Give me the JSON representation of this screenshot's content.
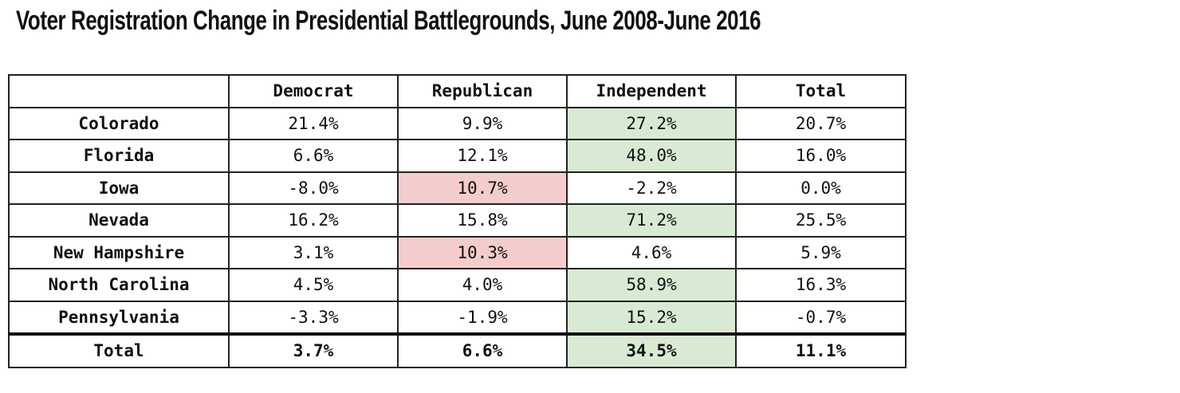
{
  "header": {
    "title": "Voter Registration Change in Presidential Battlegrounds, June 2008-June 2016"
  },
  "table": {
    "columns": [
      "Democrat",
      "Republican",
      "Independent",
      "Total"
    ],
    "rows": [
      [
        "Colorado",
        "21.4%",
        "9.9%",
        "27.2%",
        "20.7%"
      ],
      [
        "Florida",
        "6.6%",
        "12.1%",
        "48.0%",
        "16.0%"
      ],
      [
        "Iowa",
        "-8.0%",
        "10.7%",
        "-2.2%",
        "0.0%"
      ],
      [
        "Nevada",
        "16.2%",
        "15.8%",
        "71.2%",
        "25.5%"
      ],
      [
        "New Hampshire",
        "3.1%",
        "10.3%",
        "4.6%",
        "5.9%"
      ],
      [
        "North Carolina",
        "4.5%",
        "4.0%",
        "58.9%",
        "16.3%"
      ],
      [
        "Pennsylvania",
        "-3.3%",
        "-1.9%",
        "15.2%",
        "-0.7%"
      ],
      [
        "Total",
        "3.7%",
        "6.6%",
        "34.5%",
        "11.1%"
      ]
    ],
    "fills": [
      [
        null,
        null,
        null,
        "#d9ead3",
        null
      ],
      [
        null,
        null,
        null,
        "#d9ead3",
        null
      ],
      [
        null,
        null,
        "#f4cccc",
        null,
        null
      ],
      [
        null,
        null,
        null,
        "#d9ead3",
        null
      ],
      [
        null,
        null,
        "#f4cccc",
        null,
        null
      ],
      [
        null,
        null,
        null,
        "#d9ead3",
        null
      ],
      [
        null,
        null,
        null,
        "#d9ead3",
        null
      ],
      [
        null,
        null,
        null,
        "#d9ead3",
        null
      ]
    ]
  }
}
